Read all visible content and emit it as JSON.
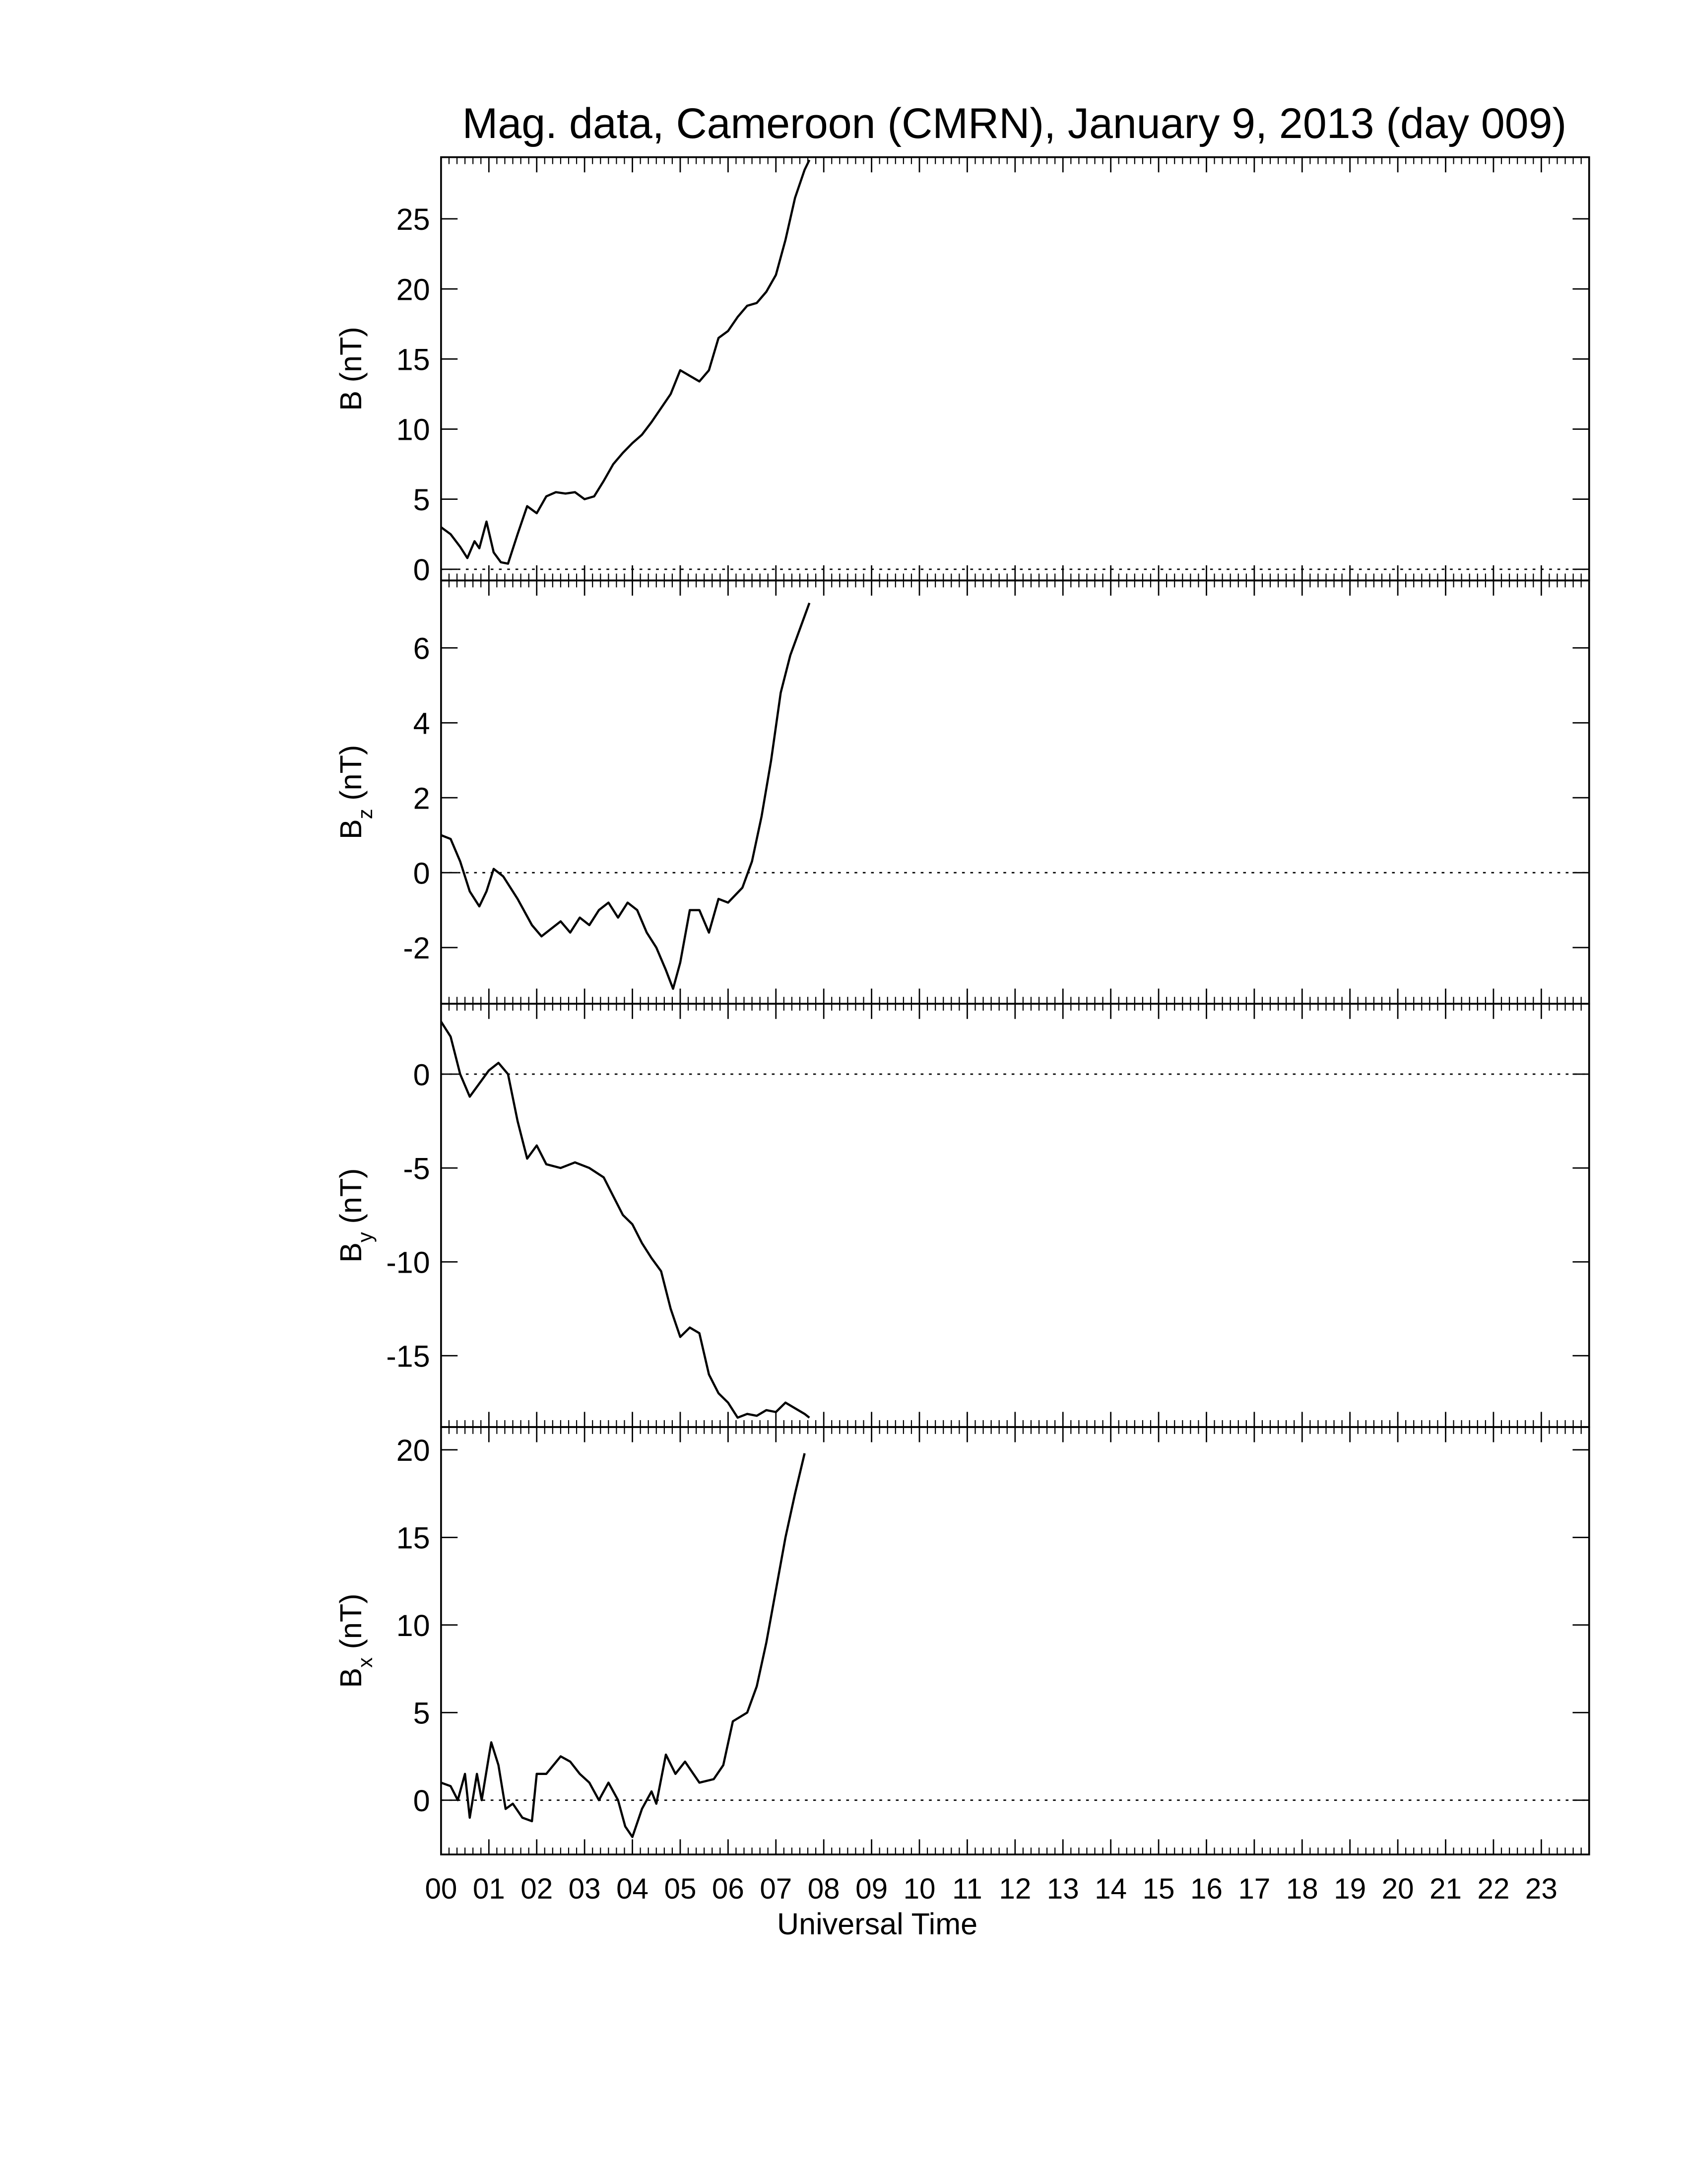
{
  "chart_data": [
    {
      "type": "line",
      "title": "Mag. data, Cameroon (CMRN), January 9, 2013 (day 009)",
      "ylabel": {
        "text": "B",
        "unit": "(nT)"
      },
      "color": "#000000",
      "xlim": [
        0,
        24
      ],
      "ylim": [
        -0.8,
        29.4
      ],
      "yticks": [
        0,
        5,
        10,
        15,
        20,
        25
      ],
      "x": [
        0,
        0.2,
        0.4,
        0.55,
        0.7,
        0.8,
        0.95,
        1.1,
        1.25,
        1.4,
        1.6,
        1.8,
        2.0,
        2.2,
        2.4,
        2.6,
        2.8,
        3.0,
        3.2,
        3.4,
        3.6,
        3.8,
        4.0,
        4.2,
        4.4,
        4.6,
        4.8,
        5.0,
        5.2,
        5.4,
        5.6,
        5.8,
        6.0,
        6.2,
        6.4,
        6.6,
        6.8,
        7.0,
        7.2,
        7.4,
        7.6,
        7.7
      ],
      "values": [
        3,
        2.5,
        1.6,
        0.8,
        2.0,
        1.5,
        3.4,
        1.2,
        0.5,
        0.4,
        2.5,
        4.5,
        4.0,
        5.2,
        5.5,
        5.4,
        5.5,
        5.0,
        5.2,
        6.3,
        7.5,
        8.3,
        9.0,
        9.6,
        10.5,
        11.5,
        12.5,
        14.2,
        13.8,
        13.4,
        14.2,
        16.5,
        17.0,
        18.0,
        18.8,
        19.0,
        19.8,
        21.0,
        23.5,
        26.5,
        28.5,
        29.2
      ]
    },
    {
      "type": "line",
      "ylabel": {
        "text": "B",
        "sub": "z",
        "unit": "(nT)"
      },
      "color": "#000000",
      "xlim": [
        0,
        24
      ],
      "ylim": [
        -3.5,
        7.8
      ],
      "yticks": [
        -2,
        0,
        2,
        4,
        6
      ],
      "x": [
        0,
        0.2,
        0.4,
        0.6,
        0.8,
        0.95,
        1.1,
        1.3,
        1.6,
        1.9,
        2.1,
        2.3,
        2.5,
        2.7,
        2.9,
        3.1,
        3.3,
        3.5,
        3.7,
        3.9,
        4.1,
        4.3,
        4.5,
        4.7,
        4.85,
        5.0,
        5.2,
        5.4,
        5.6,
        5.8,
        6.0,
        6.3,
        6.5,
        6.7,
        6.9,
        7.1,
        7.3,
        7.5,
        7.7
      ],
      "values": [
        1.0,
        0.9,
        0.3,
        -0.5,
        -0.9,
        -0.5,
        0.1,
        -0.1,
        -0.7,
        -1.4,
        -1.7,
        -1.5,
        -1.3,
        -1.6,
        -1.2,
        -1.4,
        -1.0,
        -0.8,
        -1.2,
        -0.8,
        -1.0,
        -1.6,
        -2.0,
        -2.6,
        -3.1,
        -2.4,
        -1.0,
        -1.0,
        -1.6,
        -0.7,
        -0.8,
        -0.4,
        0.3,
        1.5,
        3.0,
        4.8,
        5.8,
        6.5,
        7.2
      ]
    },
    {
      "type": "line",
      "ylabel": {
        "text": "B",
        "sub": "y",
        "unit": "(nT)"
      },
      "color": "#000000",
      "xlim": [
        0,
        24
      ],
      "ylim": [
        -18.8,
        3.75
      ],
      "yticks": [
        -15,
        -10,
        -5,
        0
      ],
      "x": [
        0,
        0.2,
        0.4,
        0.6,
        0.8,
        1.0,
        1.2,
        1.4,
        1.6,
        1.8,
        2.0,
        2.2,
        2.5,
        2.8,
        3.1,
        3.4,
        3.6,
        3.8,
        4.0,
        4.2,
        4.4,
        4.6,
        4.8,
        5.0,
        5.2,
        5.4,
        5.6,
        5.8,
        6.0,
        6.2,
        6.4,
        6.6,
        6.8,
        7.0,
        7.2,
        7.4,
        7.6,
        7.7
      ],
      "values": [
        2.8,
        2.0,
        0.0,
        -1.2,
        -0.5,
        0.2,
        0.6,
        0.0,
        -2.5,
        -4.5,
        -3.8,
        -4.8,
        -5.0,
        -4.7,
        -5.0,
        -5.5,
        -6.5,
        -7.5,
        -8.0,
        -9.0,
        -9.8,
        -10.5,
        -12.5,
        -14.0,
        -13.5,
        -13.8,
        -16.0,
        -17.0,
        -17.5,
        -18.3,
        -18.1,
        -18.2,
        -17.9,
        -18.0,
        -17.5,
        -17.8,
        -18.1,
        -18.3
      ]
    },
    {
      "type": "line",
      "ylabel": {
        "text": "B",
        "sub": "x",
        "unit": "(nT)"
      },
      "color": "#000000",
      "xlabel": "Universal Time",
      "xlim": [
        0,
        24
      ],
      "ylim": [
        -3.1,
        21.3
      ],
      "yticks": [
        0,
        5,
        10,
        15,
        20
      ],
      "xticks": [
        {
          "value": 0,
          "label": "00"
        },
        {
          "value": 1,
          "label": "01"
        },
        {
          "value": 2,
          "label": "02"
        },
        {
          "value": 3,
          "label": "03"
        },
        {
          "value": 4,
          "label": "04"
        },
        {
          "value": 5,
          "label": "05"
        },
        {
          "value": 6,
          "label": "06"
        },
        {
          "value": 7,
          "label": "07"
        },
        {
          "value": 8,
          "label": "08"
        },
        {
          "value": 9,
          "label": "09"
        },
        {
          "value": 10,
          "label": "10"
        },
        {
          "value": 11,
          "label": "11"
        },
        {
          "value": 12,
          "label": "12"
        },
        {
          "value": 13,
          "label": "13"
        },
        {
          "value": 14,
          "label": "14"
        },
        {
          "value": 15,
          "label": "15"
        },
        {
          "value": 16,
          "label": "16"
        },
        {
          "value": 17,
          "label": "17"
        },
        {
          "value": 18,
          "label": "18"
        },
        {
          "value": 19,
          "label": "19"
        },
        {
          "value": 20,
          "label": "20"
        },
        {
          "value": 21,
          "label": "21"
        },
        {
          "value": 22,
          "label": "22"
        },
        {
          "value": 23,
          "label": "23"
        }
      ],
      "x": [
        0,
        0.2,
        0.35,
        0.5,
        0.6,
        0.75,
        0.85,
        1.0,
        1.05,
        1.2,
        1.35,
        1.5,
        1.7,
        1.9,
        2.0,
        2.2,
        2.5,
        2.7,
        2.9,
        3.1,
        3.3,
        3.5,
        3.7,
        3.85,
        4.0,
        4.2,
        4.4,
        4.5,
        4.7,
        4.9,
        5.1,
        5.4,
        5.7,
        5.9,
        6.1,
        6.4,
        6.6,
        6.8,
        7.0,
        7.2,
        7.4,
        7.6
      ],
      "values": [
        1.0,
        0.8,
        0.0,
        1.5,
        -1.0,
        1.5,
        0.0,
        2.5,
        3.3,
        2.0,
        -0.5,
        -0.2,
        -1.0,
        -1.2,
        1.5,
        1.5,
        2.5,
        2.2,
        1.5,
        1.0,
        0.0,
        1.0,
        0.0,
        -1.5,
        -2.1,
        -0.5,
        0.5,
        -0.2,
        2.6,
        1.5,
        2.2,
        1.0,
        1.2,
        2.0,
        4.5,
        5.0,
        6.5,
        9.0,
        12.0,
        15.0,
        17.5,
        19.8
      ]
    }
  ]
}
